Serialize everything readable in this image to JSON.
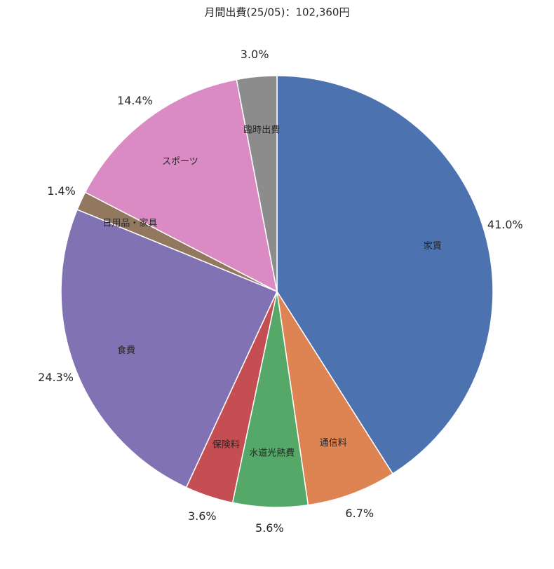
{
  "chart_data": {
    "type": "pie",
    "title": "月間出費(25/05)：102,360円",
    "categories": [
      "家賃",
      "通信料",
      "水道光熱費",
      "保険料",
      "食費",
      "日用品・家具",
      "スポーツ",
      "臨時出費"
    ],
    "values": [
      41.0,
      6.7,
      5.6,
      3.6,
      24.3,
      1.4,
      14.4,
      3.0
    ],
    "value_labels": [
      "41.0%",
      "6.7%",
      "5.6%",
      "3.6%",
      "24.3%",
      "1.4%",
      "14.4%",
      "3.0%"
    ],
    "colors": [
      "#4c72b0",
      "#dd8452",
      "#55a868",
      "#c44e52",
      "#8172b3",
      "#937860",
      "#da8bc3",
      "#8c8c8c"
    ]
  }
}
